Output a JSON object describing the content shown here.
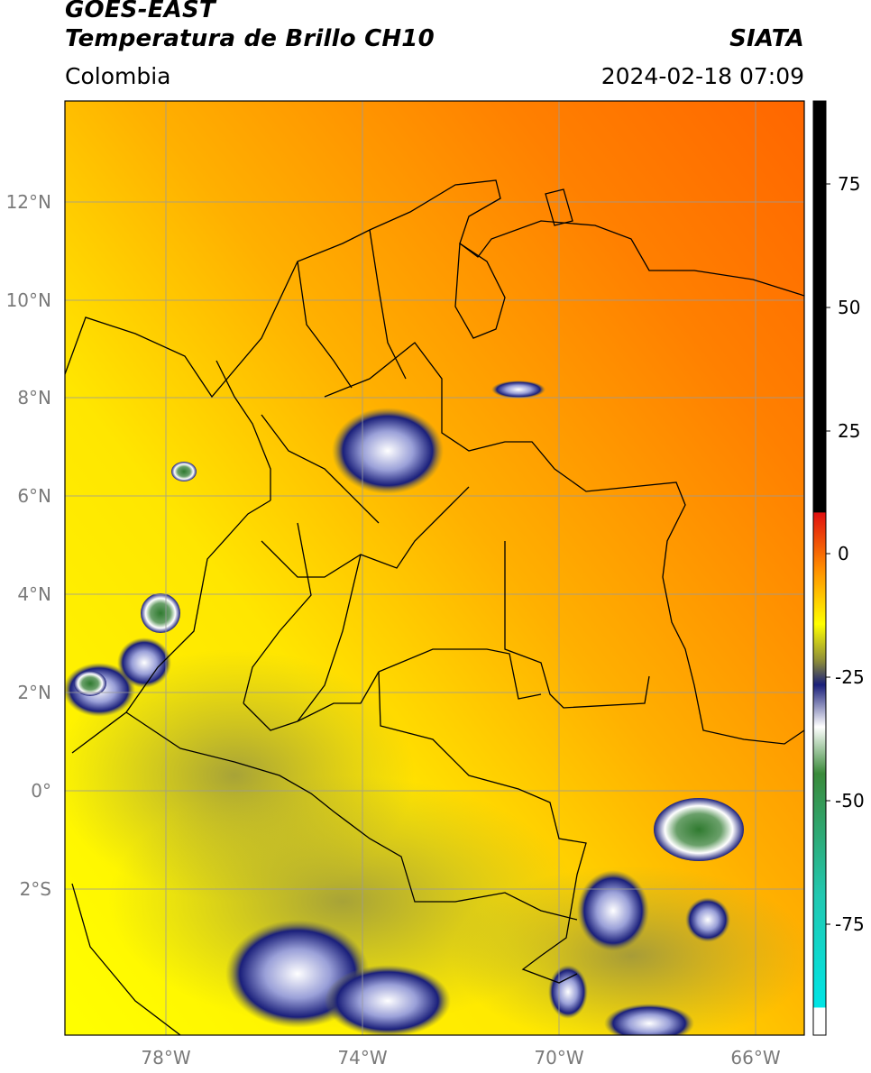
{
  "header": {
    "title_line1": "GOES-EAST",
    "title_line2": "Temperatura de Brillo CH10",
    "region": "Colombia",
    "brand": "SIATA",
    "datetime": "2024-02-18 07:09"
  },
  "map": {
    "lat_ticks": [
      "12°N",
      "10°N",
      "8°N",
      "6°N",
      "4°N",
      "2°N",
      "0°",
      "2°S"
    ],
    "lon_ticks": [
      "78°W",
      "74°W",
      "70°W",
      "66°W"
    ]
  },
  "colorbar": {
    "tick_labels": [
      "75",
      "50",
      "25",
      "0",
      "-25",
      "-50",
      "-75"
    ],
    "colors": {
      "high": "#000000",
      "warm": "#e01010",
      "orange": "#ff8c00",
      "yellow": "#ffff00",
      "olive": "#8a8a3a",
      "navy": "#1a1f7a",
      "white": "#ffffff",
      "green": "#3a8a3a",
      "teal": "#22c8b0",
      "cyan": "#00e5e5"
    }
  }
}
